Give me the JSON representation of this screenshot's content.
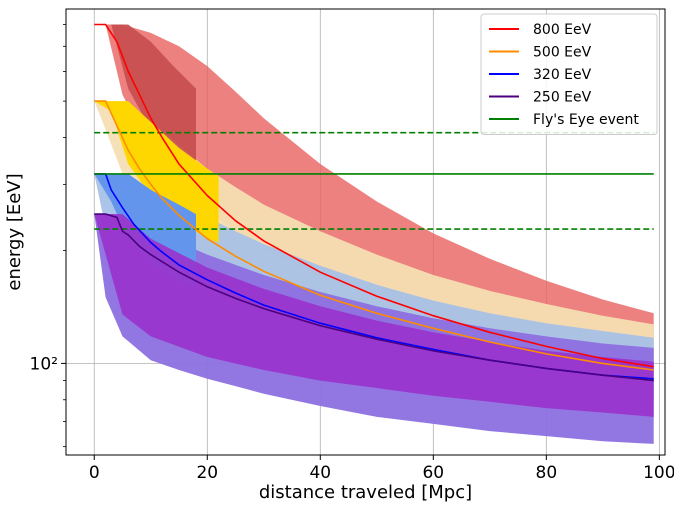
{
  "chart_data": {
    "type": "line",
    "title": "",
    "xlabel": "distance traveled [Mpc]",
    "ylabel": "energy [EeV]",
    "xlim": [
      -5,
      101
    ],
    "ylim": [
      57,
      880
    ],
    "yscale": "log",
    "grid": true,
    "legend_position": "top-right",
    "x_ticks": [
      0,
      20,
      40,
      60,
      80,
      100
    ],
    "x_tick_labels": [
      "0",
      "20",
      "40",
      "60",
      "80",
      "100"
    ],
    "y_major_ticks": [
      100
    ],
    "y_major_tick_labels": [
      "10²"
    ],
    "y_minor_ticks": [
      60,
      70,
      80,
      90,
      200,
      300,
      400,
      500,
      600,
      700,
      800
    ],
    "bands": [
      {
        "name": "800 EeV range",
        "color": "#e8625f",
        "opacity": 0.8,
        "x": [
          0,
          2,
          5,
          10,
          15,
          20,
          25,
          30,
          40,
          50,
          60,
          70,
          80,
          90,
          99
        ],
        "lower": [
          800,
          800,
          520,
          370,
          300,
          255,
          225,
          200,
          170,
          150,
          135,
          122,
          112,
          104,
          98
        ],
        "upper": [
          800,
          800,
          800,
          760,
          700,
          620,
          530,
          450,
          340,
          270,
          222,
          190,
          166,
          148,
          136
        ]
      },
      {
        "name": "500 EeV range",
        "color": "#f5deb3",
        "opacity": 0.95,
        "x": [
          0,
          2,
          5,
          10,
          15,
          20,
          25,
          30,
          40,
          50,
          60,
          70,
          80,
          90,
          99
        ],
        "lower": [
          500,
          420,
          320,
          255,
          215,
          190,
          172,
          160,
          143,
          130,
          120,
          112,
          106,
          101,
          96
        ],
        "upper": [
          500,
          500,
          500,
          440,
          380,
          330,
          295,
          265,
          225,
          195,
          172,
          156,
          144,
          134,
          127
        ]
      },
      {
        "name": "320 EeV range",
        "color": "#a8c1e6",
        "opacity": 0.95,
        "x": [
          0,
          2,
          5,
          10,
          15,
          20,
          25,
          30,
          40,
          50,
          60,
          70,
          80,
          90,
          99
        ],
        "lower": [
          320,
          230,
          180,
          150,
          135,
          125,
          118,
          112,
          103,
          96,
          91,
          87,
          84,
          81,
          80
        ],
        "upper": [
          320,
          320,
          320,
          290,
          265,
          245,
          225,
          208,
          182,
          162,
          147,
          136,
          128,
          122,
          117
        ]
      },
      {
        "name": "250 EeV range",
        "color": "#8c6fe0",
        "opacity": 0.95,
        "x": [
          0,
          2,
          5,
          10,
          15,
          20,
          25,
          30,
          40,
          50,
          60,
          70,
          80,
          90,
          99
        ],
        "lower": [
          250,
          150,
          118,
          102,
          96,
          91,
          87,
          83,
          77,
          72,
          69,
          66,
          64,
          62,
          61
        ],
        "upper": [
          250,
          250,
          250,
          230,
          210,
          195,
          183,
          172,
          155,
          142,
          132,
          124,
          118,
          113,
          110
        ]
      }
    ],
    "inner_bands": [
      {
        "name": "800 EeV core",
        "color": "#c34a4a",
        "opacity": 0.85,
        "x": [
          0,
          3,
          6,
          10,
          14,
          18
        ],
        "lower": [
          800,
          800,
          540,
          420,
          360,
          330
        ],
        "upper": [
          800,
          800,
          800,
          720,
          620,
          540
        ]
      },
      {
        "name": "500 EeV core",
        "color": "#ffd700",
        "opacity": 1.0,
        "x": [
          0,
          3,
          6,
          10,
          15,
          20,
          22
        ],
        "lower": [
          500,
          470,
          340,
          280,
          240,
          215,
          210
        ],
        "upper": [
          500,
          500,
          500,
          440,
          375,
          330,
          315
        ]
      },
      {
        "name": "320 EeV core",
        "color": "#6495ed",
        "opacity": 1.0,
        "x": [
          0,
          3,
          6,
          10,
          15,
          18
        ],
        "lower": [
          320,
          270,
          215,
          185,
          165,
          160
        ],
        "upper": [
          320,
          320,
          320,
          290,
          265,
          250
        ]
      },
      {
        "name": "250 EeV core",
        "color": "#9932cc",
        "opacity": 0.9,
        "x": [
          0,
          5,
          10,
          20,
          30,
          40,
          50,
          60,
          70,
          80,
          90,
          99
        ],
        "lower": [
          250,
          135,
          118,
          104,
          96,
          90,
          86,
          82,
          79,
          76,
          74,
          72
        ],
        "upper": [
          250,
          250,
          215,
          180,
          158,
          142,
          130,
          121,
          114,
          108,
          104,
          101
        ]
      }
    ],
    "series": [
      {
        "name": "800 EeV",
        "color": "#ff0000",
        "x": [
          0,
          2,
          4,
          6,
          8,
          10,
          12,
          15,
          20,
          25,
          30,
          40,
          50,
          60,
          70,
          80,
          90,
          99
        ],
        "values": [
          800,
          800,
          720,
          600,
          520,
          450,
          400,
          340,
          280,
          240,
          212,
          175,
          151,
          134,
          121,
          111,
          103,
          98
        ]
      },
      {
        "name": "500 EeV",
        "color": "#ff8c00",
        "x": [
          0,
          2,
          4,
          6,
          8,
          10,
          12,
          15,
          20,
          25,
          30,
          40,
          50,
          60,
          70,
          80,
          90,
          99
        ],
        "values": [
          500,
          500,
          430,
          370,
          330,
          300,
          275,
          248,
          215,
          193,
          176,
          152,
          136,
          124,
          114,
          106,
          100,
          96
        ]
      },
      {
        "name": "320 EeV",
        "color": "#0000ff",
        "x": [
          0,
          2,
          3,
          5,
          7,
          10,
          12,
          15,
          20,
          25,
          30,
          40,
          50,
          60,
          70,
          80,
          90,
          99
        ],
        "values": [
          320,
          320,
          290,
          260,
          235,
          210,
          198,
          183,
          167,
          154,
          143,
          128,
          117,
          109,
          102,
          97,
          93,
          91
        ]
      },
      {
        "name": "250 EeV",
        "color": "#4b0082",
        "x": [
          0,
          2,
          4,
          5,
          6,
          8,
          10,
          15,
          20,
          25,
          30,
          40,
          50,
          60,
          70,
          80,
          90,
          99
        ],
        "values": [
          250,
          250,
          245,
          225,
          220,
          205,
          195,
          175,
          160,
          149,
          140,
          126,
          116,
          108,
          102,
          97,
          93,
          90
        ]
      },
      {
        "name": "Fly's Eye event",
        "color": "#008000",
        "x": [
          0,
          99
        ],
        "values": [
          320,
          320
        ]
      }
    ],
    "reference_lines": [
      {
        "name": "Fly's Eye upper",
        "color": "#008000",
        "style": "dashed",
        "x": [
          0,
          99
        ],
        "value": 412
      },
      {
        "name": "Fly's Eye lower",
        "color": "#008000",
        "style": "dashed",
        "x": [
          0,
          99
        ],
        "value": 228
      }
    ]
  }
}
